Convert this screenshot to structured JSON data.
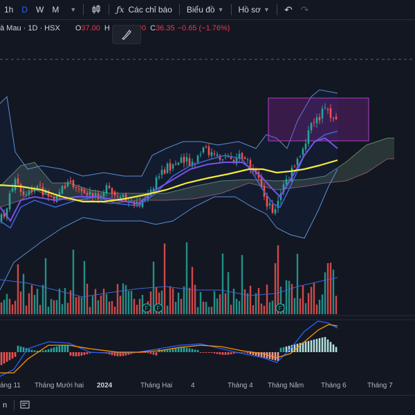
{
  "toolbar": {
    "intervals": [
      "1h",
      "D",
      "W",
      "M"
    ],
    "active_interval": "D",
    "indicators_label": "Các chỉ báo",
    "chart_type_label": "Biểu đồ",
    "profile_label": "Hồ sơ"
  },
  "legend": {
    "symbol": "à Mau · 1D · HSX",
    "open_label": "O",
    "open_value": "37.00",
    "high_label": "H",
    "low_partial": "90",
    "close_label": "C",
    "close_value": "36.35",
    "change": "−0.65 (−1.76%)"
  },
  "time_axis": {
    "labels": [
      "áng 11",
      "Tháng Mười hai",
      "2024",
      "Tháng Hai",
      "4",
      "Tháng 4",
      "Tháng Năm",
      "Tháng 6",
      "Tháng 7"
    ]
  },
  "bottom": {
    "left_text": "n"
  },
  "markers": {
    "label": "F"
  },
  "colors": {
    "up": "#26a69a",
    "down": "#ef5350",
    "ma_yellow": "#f5eb3b",
    "ma_violet": "#7b52e3",
    "ma_blue": "#3f67d6",
    "bollinger": "#5b8fd6",
    "highlight_box": "#9c27b0",
    "background": "#131722"
  }
}
